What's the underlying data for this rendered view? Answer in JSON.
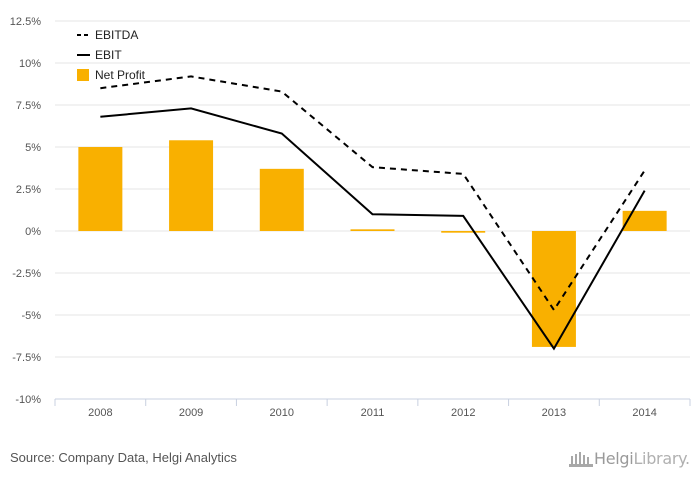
{
  "chart_data": {
    "type": "bar",
    "categories": [
      "2008",
      "2009",
      "2010",
      "2011",
      "2012",
      "2013",
      "2014"
    ],
    "series": [
      {
        "name": "EBITDA",
        "kind": "line",
        "style": "dashed",
        "color": "#000000",
        "values": [
          8.5,
          9.2,
          8.3,
          3.8,
          3.4,
          -4.7,
          3.6
        ]
      },
      {
        "name": "EBIT",
        "kind": "line",
        "style": "solid",
        "color": "#000000",
        "values": [
          6.8,
          7.3,
          5.8,
          1.0,
          0.9,
          -7.0,
          2.4
        ]
      },
      {
        "name": "Net Profit",
        "kind": "bar",
        "color": "#f9b000",
        "values": [
          5.0,
          5.4,
          3.7,
          0.1,
          -0.1,
          -6.9,
          1.2
        ]
      }
    ],
    "yticks": [
      "12.5%",
      "10%",
      "7.5%",
      "5%",
      "2.5%",
      "0%",
      "-2.5%",
      "-5%",
      "-7.5%",
      "-10%"
    ],
    "ylim": [
      -10,
      12.5
    ],
    "grid": true,
    "legend_position": "top-left"
  },
  "footer": {
    "source": "Source: Company Data, Helgi Analytics",
    "logo_text_bold": "Helgi",
    "logo_text_light": "Library."
  }
}
